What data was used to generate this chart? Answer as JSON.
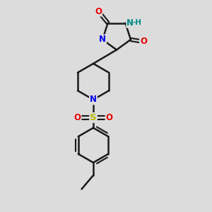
{
  "bg_color": "#dcdcdc",
  "bond_color": "#1a1a1a",
  "bond_width": 1.8,
  "atom_colors": {
    "N_blue": "#0000ee",
    "N_teal": "#008b8b",
    "O": "#ee0000",
    "S": "#b8b800",
    "C": "#1a1a1a"
  },
  "figsize": [
    3.0,
    3.0
  ],
  "dpi": 100,
  "xlim": [
    0,
    10
  ],
  "ylim": [
    0,
    10
  ]
}
